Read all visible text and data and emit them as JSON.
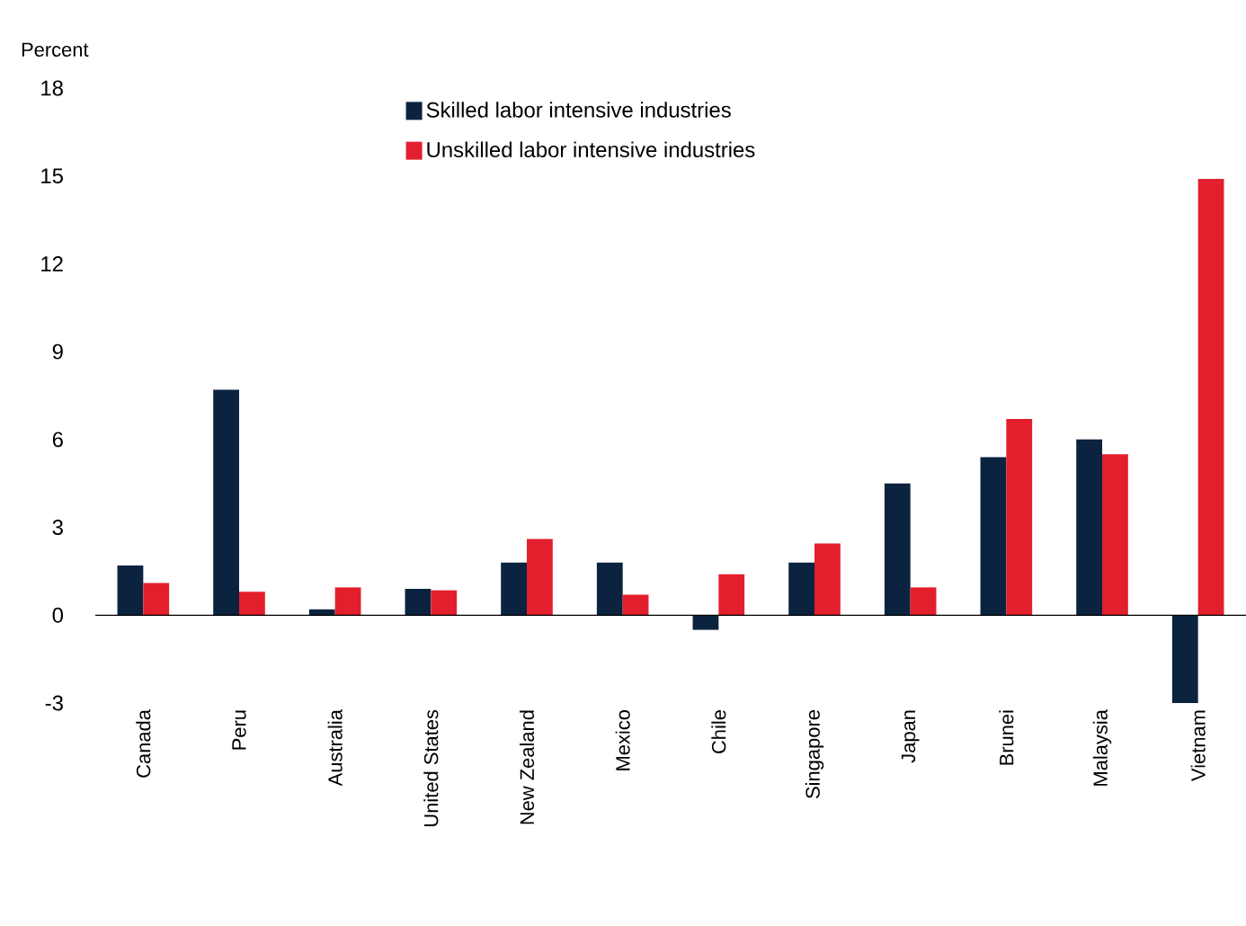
{
  "chart_data": {
    "type": "bar",
    "ylabel": "Percent",
    "categories": [
      "Canada",
      "Peru",
      "Australia",
      "United States",
      "New Zealand",
      "Mexico",
      "Chile",
      "Singapore",
      "Japan",
      "Brunei",
      "Malaysia",
      "Vietnam"
    ],
    "series": [
      {
        "name": "Skilled labor intensive industries",
        "color": "#0c2340",
        "values": [
          1.7,
          7.7,
          0.2,
          0.9,
          1.8,
          1.8,
          -0.5,
          1.8,
          4.5,
          5.4,
          6.0,
          -3.0
        ]
      },
      {
        "name": "Unskilled labor intensive industries",
        "color": "#e41f2d",
        "values": [
          1.1,
          0.8,
          0.95,
          0.85,
          2.6,
          0.7,
          1.4,
          2.45,
          0.95,
          6.7,
          5.5,
          14.9
        ]
      }
    ],
    "ylim": [
      -3,
      18
    ],
    "yticks": [
      -3,
      0,
      3,
      6,
      9,
      12,
      15,
      18
    ],
    "legend": "top"
  }
}
